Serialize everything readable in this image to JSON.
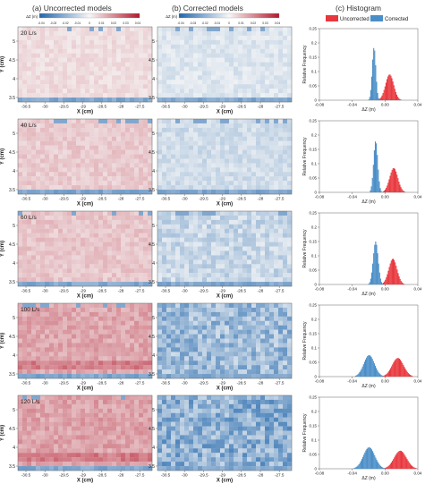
{
  "columns": {
    "a": "(a) Uncorrected models",
    "b": "(b) Corrected models",
    "c": "(c) Histogram"
  },
  "colorbar": {
    "label": "ΔZ (m)",
    "ticks": [
      "-0.04",
      "-0.03",
      "-0.02",
      "-0.01",
      "0",
      "0.01",
      "0.02",
      "0.03",
      "0.04"
    ],
    "range": [
      -0.04,
      0.04
    ],
    "colors": [
      "#2166ac",
      "#f7f7f7",
      "#b2182b"
    ]
  },
  "map_axes": {
    "xlabel": "X (cm)",
    "ylabel": "Y (cm)",
    "xticks": [
      "-30.5",
      "-30",
      "-29.5",
      "-29",
      "-28.5",
      "-28",
      "-27.5"
    ],
    "yticks": [
      "3.5",
      "4",
      "4.5",
      "5"
    ]
  },
  "hist_axes": {
    "xlabel": "ΔZ (m)",
    "ylabel": "Relative Frequency",
    "xticks": [
      "-0.08",
      "-0.04",
      "0.00",
      "0.04"
    ],
    "yticks": [
      "0",
      "0.05",
      "0.1",
      "0.15",
      "0.2",
      "0.25"
    ]
  },
  "legend": {
    "items": [
      {
        "label": "Uncorrected",
        "color": "#e8373d"
      },
      {
        "label": "Corrected",
        "color": "#4a8ec7"
      }
    ],
    "placement": "top"
  },
  "rows": [
    {
      "flow": "20 L/s",
      "unc_mean": 0.005,
      "unc_sd": 0.005,
      "unc_peak": 0.09,
      "cor_mean": -0.014,
      "cor_sd": 0.0022,
      "cor_peak": 0.185,
      "unc_level": 0.12,
      "cor_level": 0.12,
      "cor_noise": 0.05
    },
    {
      "flow": "40 L/s",
      "unc_mean": 0.01,
      "unc_sd": 0.005,
      "unc_peak": 0.085,
      "cor_mean": -0.012,
      "cor_sd": 0.0025,
      "cor_peak": 0.18,
      "unc_level": 0.2,
      "cor_level": 0.18,
      "cor_noise": 0.05
    },
    {
      "flow": "60 L/s",
      "unc_mean": 0.009,
      "unc_sd": 0.005,
      "unc_peak": 0.09,
      "cor_mean": -0.012,
      "cor_sd": 0.003,
      "cor_peak": 0.15,
      "unc_level": 0.22,
      "cor_level": 0.22,
      "cor_noise": 0.09
    },
    {
      "flow": "100 L/s",
      "unc_mean": 0.015,
      "unc_sd": 0.007,
      "unc_peak": 0.065,
      "cor_mean": -0.02,
      "cor_sd": 0.0065,
      "cor_peak": 0.075,
      "unc_level": 0.36,
      "cor_level": 0.42,
      "cor_noise": 0.14
    },
    {
      "flow": "120 L/s",
      "unc_mean": 0.018,
      "unc_sd": 0.0075,
      "unc_peak": 0.063,
      "cor_mean": -0.02,
      "cor_sd": 0.007,
      "cor_peak": 0.075,
      "unc_level": 0.38,
      "cor_level": 0.5,
      "cor_noise": 0.16
    }
  ],
  "chart_data": {
    "type": "heatmap",
    "title": "",
    "panels": [
      "(a) Uncorrected models",
      "(b) Corrected models",
      "(c) Histogram"
    ],
    "flow_rates": [
      "20 L/s",
      "40 L/s",
      "60 L/s",
      "100 L/s",
      "120 L/s"
    ],
    "xlim_map": [
      -30.8,
      -27.2
    ],
    "ylim_map": [
      3.4,
      5.5
    ],
    "histogram": {
      "type": "area",
      "xlim": [
        -0.08,
        0.04
      ],
      "ylim": [
        0,
        0.25
      ],
      "series": [
        {
          "name": "Uncorrected",
          "mean": [
            0.005,
            0.01,
            0.009,
            0.015,
            0.018
          ],
          "peak": [
            0.09,
            0.085,
            0.09,
            0.065,
            0.063
          ]
        },
        {
          "name": "Corrected",
          "mean": [
            -0.014,
            -0.012,
            -0.012,
            -0.02,
            -0.02
          ],
          "peak": [
            0.185,
            0.18,
            0.15,
            0.075,
            0.075
          ]
        }
      ]
    }
  }
}
